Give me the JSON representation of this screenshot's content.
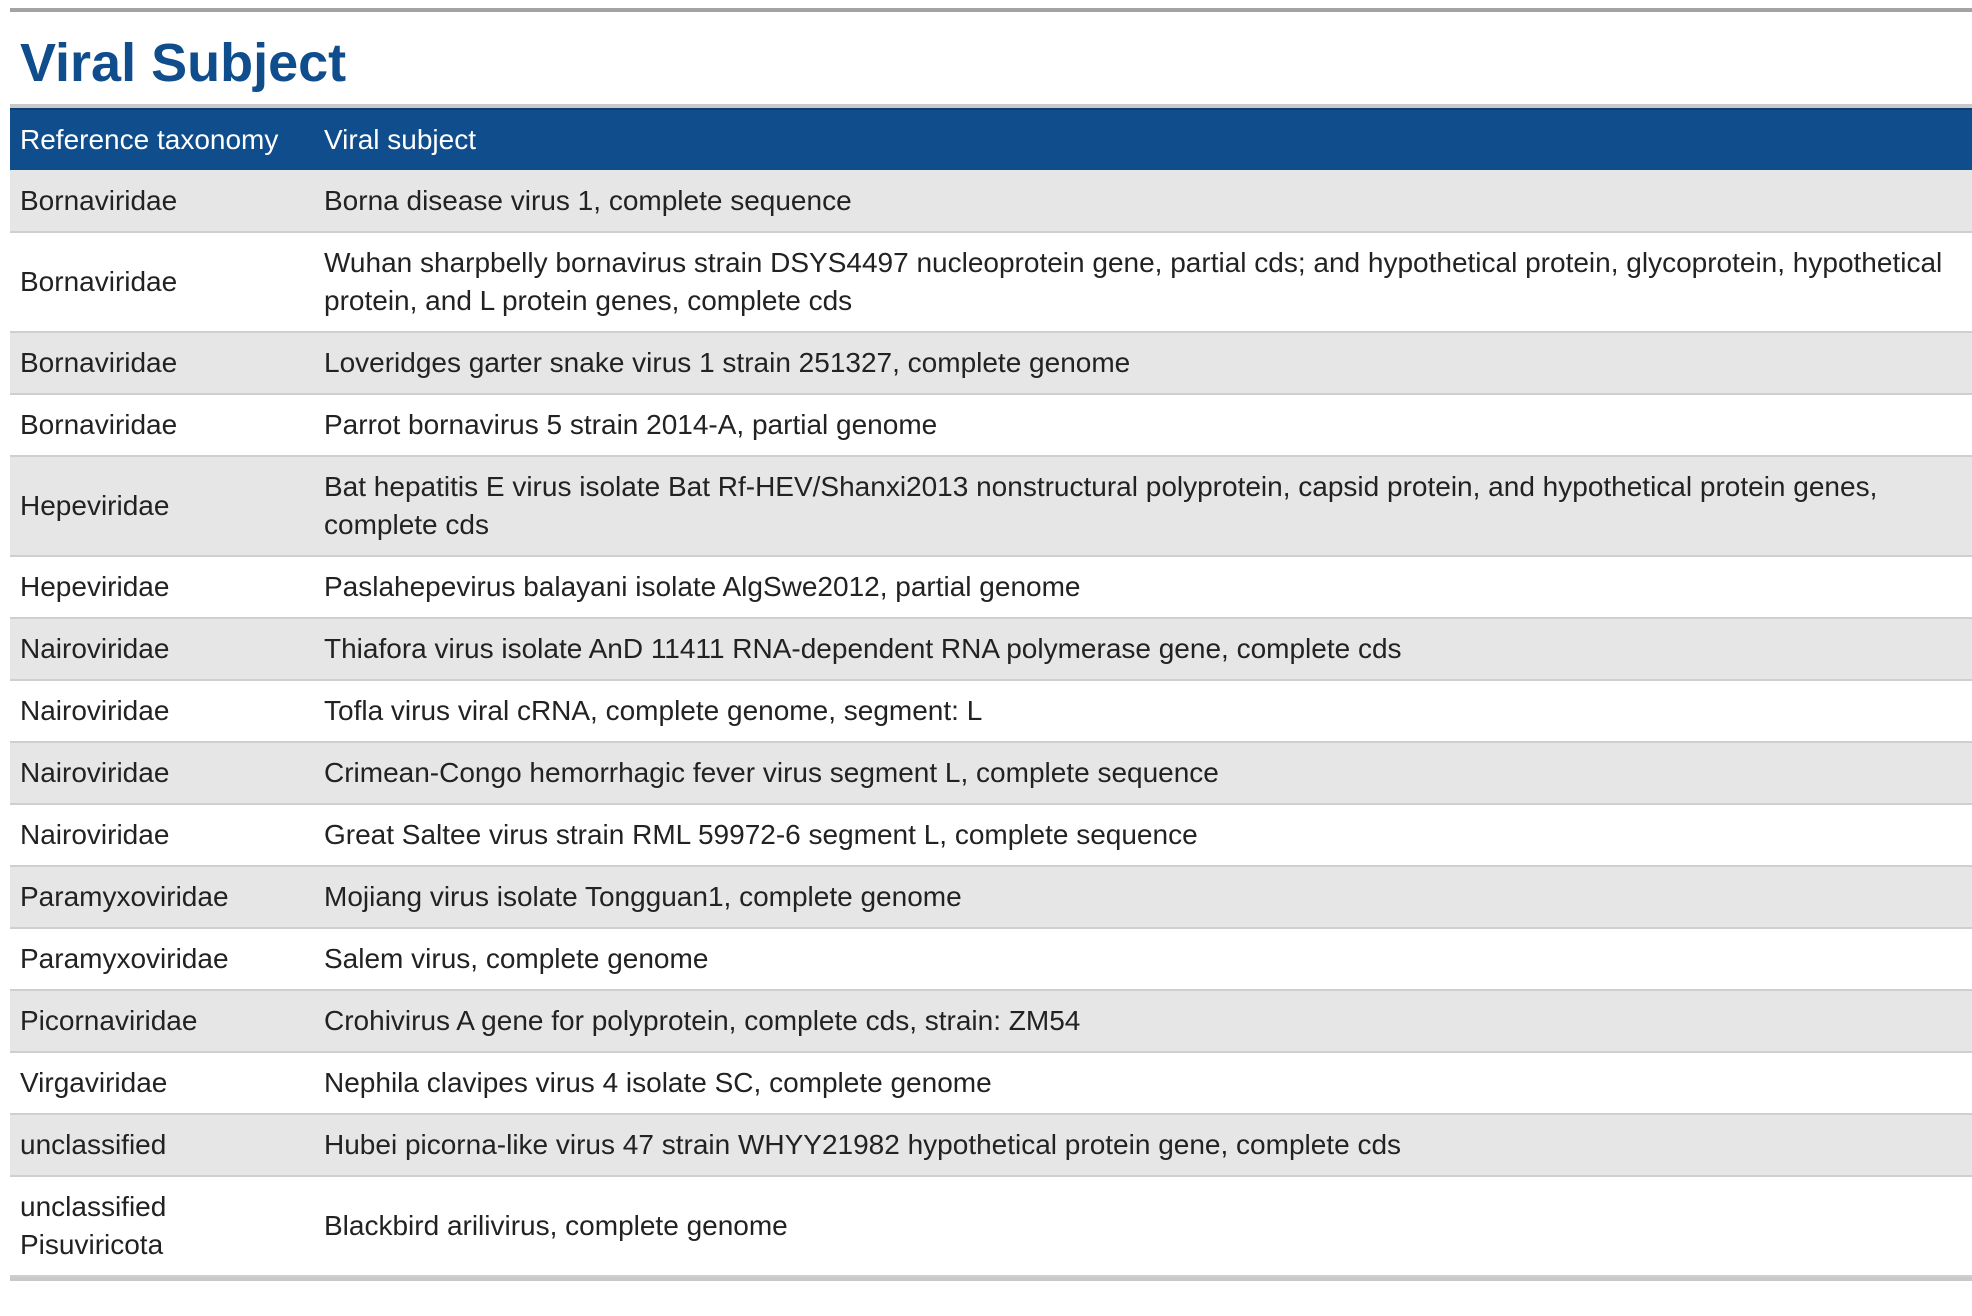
{
  "title": "Viral Subject",
  "colors": {
    "title": "#0f4d8c",
    "header_bg": "#0f4d8c",
    "header_text": "#ffffff",
    "row_alt": "#e6e6e6"
  },
  "table": {
    "headers": [
      "Reference taxonomy",
      "Viral subject"
    ],
    "rows": [
      [
        "Bornaviridae",
        "Borna disease virus 1, complete sequence"
      ],
      [
        "Bornaviridae",
        "Wuhan sharpbelly bornavirus strain DSYS4497 nucleoprotein gene, partial cds; and hypothetical protein, glycoprotein, hypothetical protein, and L protein genes, complete cds"
      ],
      [
        "Bornaviridae",
        "Loveridges garter snake virus 1 strain 251327, complete genome"
      ],
      [
        "Bornaviridae",
        "Parrot bornavirus 5 strain 2014-A, partial genome"
      ],
      [
        "Hepeviridae",
        "Bat hepatitis E virus isolate Bat Rf-HEV/Shanxi2013 nonstructural polyprotein, capsid protein, and hypothetical protein genes, complete cds"
      ],
      [
        "Hepeviridae",
        "Paslahepevirus balayani isolate AlgSwe2012, partial genome"
      ],
      [
        "Nairoviridae",
        "Thiafora virus isolate AnD 11411 RNA-dependent RNA polymerase gene, complete cds"
      ],
      [
        "Nairoviridae",
        "Tofla virus viral cRNA, complete genome, segment: L"
      ],
      [
        "Nairoviridae",
        "Crimean-Congo hemorrhagic fever virus segment L, complete sequence"
      ],
      [
        "Nairoviridae",
        "Great Saltee virus strain RML 59972-6 segment L, complete sequence"
      ],
      [
        "Paramyxoviridae",
        "Mojiang virus isolate Tongguan1, complete genome"
      ],
      [
        "Paramyxoviridae",
        "Salem virus, complete genome"
      ],
      [
        "Picornaviridae",
        "Crohivirus A gene for polyprotein, complete cds, strain: ZM54"
      ],
      [
        "Virgaviridae",
        "Nephila clavipes virus 4 isolate SC, complete genome"
      ],
      [
        "unclassified",
        "Hubei picorna-like virus 47 strain WHYY21982 hypothetical protein gene, complete cds"
      ],
      [
        "unclassified Pisuviricota",
        "Blackbird arilivirus, complete genome"
      ]
    ]
  }
}
